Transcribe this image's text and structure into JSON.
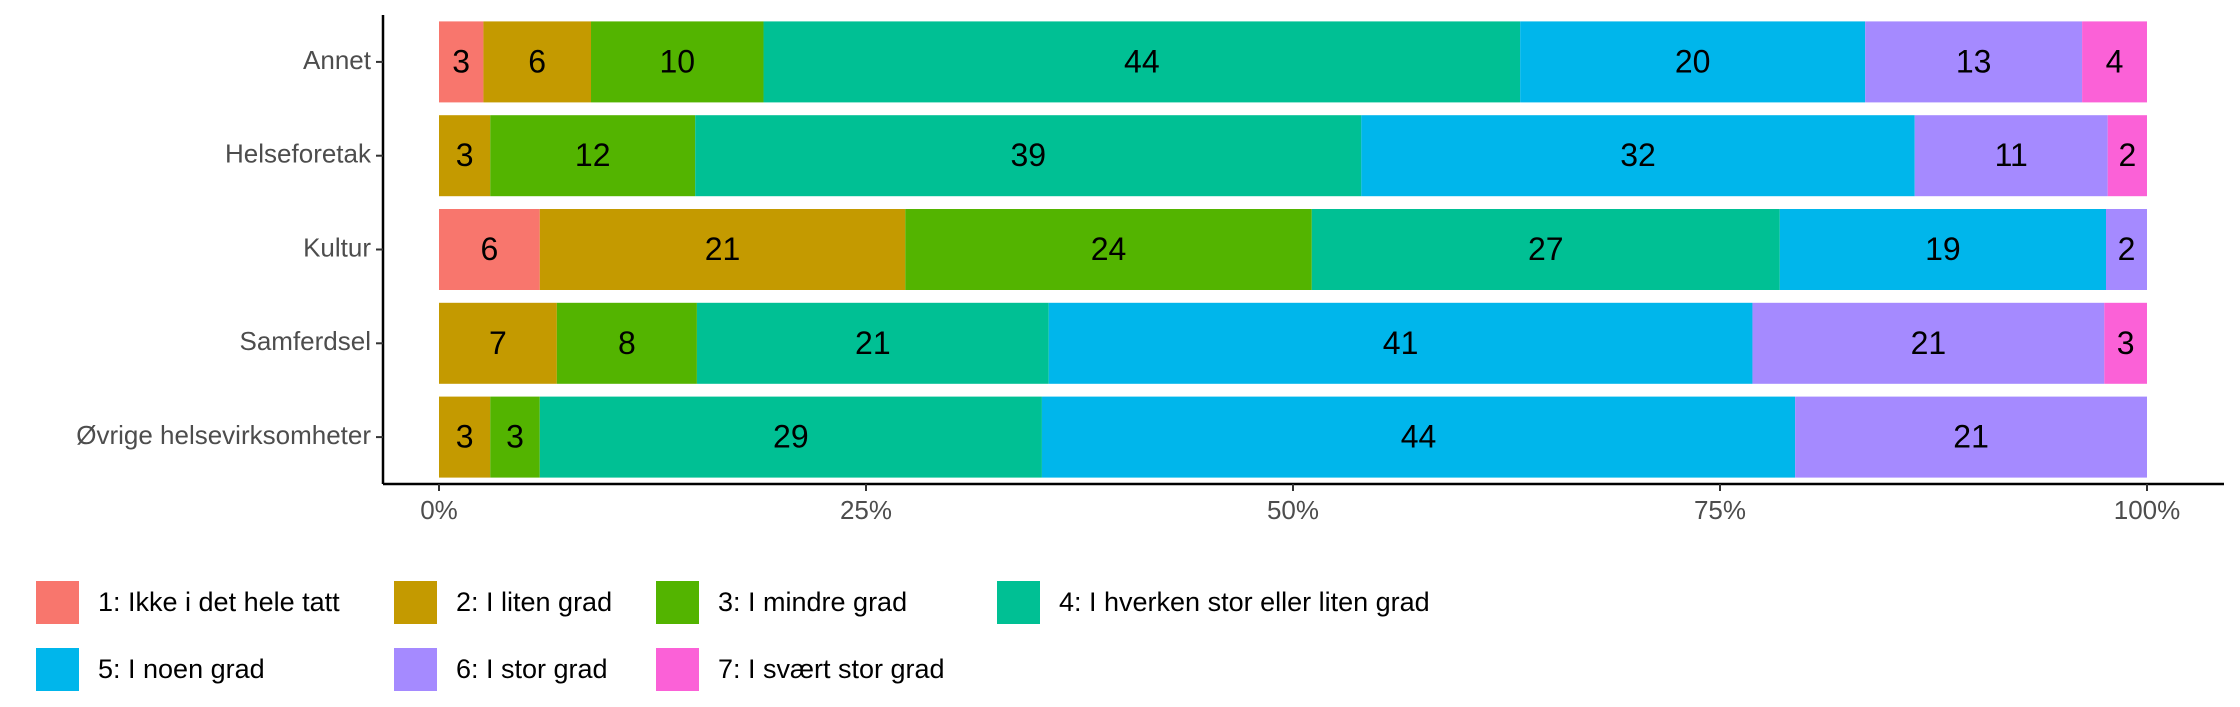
{
  "chart_data": {
    "type": "bar",
    "orientation": "horizontal",
    "stacked": true,
    "categories": [
      "Annet",
      "Helseforetak",
      "Kultur",
      "Samferdsel",
      "Øvrige helsevirksomheter"
    ],
    "series": [
      {
        "name": "1: Ikke i det hele tatt",
        "color": "#f8766d",
        "values": [
          2.6,
          null,
          5.9,
          null,
          null
        ],
        "value_labels": [
          "3",
          null,
          "6",
          null,
          null
        ]
      },
      {
        "name": "2: I liten grad",
        "color": "#c49a00",
        "values": [
          6.3,
          3.0,
          21.4,
          6.9,
          3.0
        ],
        "value_labels": [
          "6",
          "3",
          "21",
          "7",
          "3"
        ]
      },
      {
        "name": "3: I mindre grad",
        "color": "#53b400",
        "values": [
          10.1,
          12.0,
          23.8,
          8.2,
          2.9
        ],
        "value_labels": [
          "10",
          "12",
          "24",
          "8",
          "3"
        ]
      },
      {
        "name": "4: I hverken stor eller liten grad",
        "color": "#00c094",
        "values": [
          44.3,
          39.0,
          27.4,
          20.6,
          29.4
        ],
        "value_labels": [
          "44",
          "39",
          "27",
          "21",
          "29"
        ]
      },
      {
        "name": "5: I noen grad",
        "color": "#00b6eb",
        "values": [
          20.2,
          32.4,
          19.1,
          41.2,
          44.1
        ],
        "value_labels": [
          "20",
          "32",
          "19",
          "41",
          "44"
        ]
      },
      {
        "name": "6: I stor grad",
        "color": "#a58aff",
        "values": [
          12.7,
          11.3,
          2.4,
          20.6,
          20.6
        ],
        "value_labels": [
          "13",
          "11",
          "2",
          "21",
          "21"
        ]
      },
      {
        "name": "7: I svært stor grad",
        "color": "#fb61d7",
        "values": [
          3.8,
          2.3,
          null,
          2.5,
          null
        ],
        "value_labels": [
          "4",
          "2",
          null,
          "3",
          null
        ]
      }
    ],
    "xlim": [
      0,
      100
    ],
    "xticks": [
      {
        "value": 0,
        "label": "0%"
      },
      {
        "value": 25,
        "label": "25%"
      },
      {
        "value": 50,
        "label": "50%"
      },
      {
        "value": 75,
        "label": "75%"
      },
      {
        "value": 100,
        "label": "100%"
      }
    ],
    "legend_position": "bottom"
  }
}
